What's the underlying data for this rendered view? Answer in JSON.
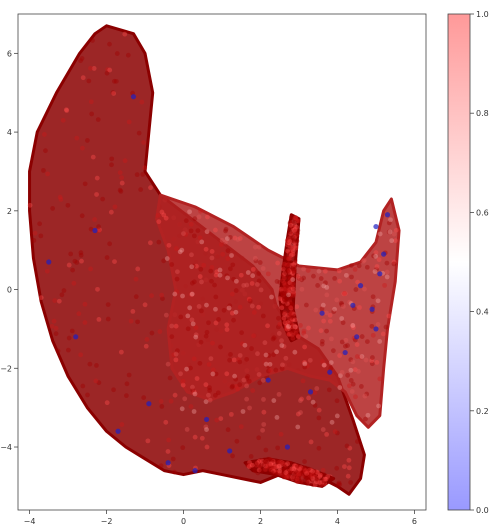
{
  "chart_data": {
    "type": "scatter",
    "xlim": [
      -4.3,
      6.3
    ],
    "ylim": [
      -5.6,
      7.0
    ],
    "x_ticks": [
      -4,
      -2,
      0,
      2,
      4,
      6
    ],
    "y_ticks": [
      -4,
      -2,
      0,
      2,
      4,
      6
    ],
    "grid": false,
    "point_alpha": 0.4,
    "colorbar": {
      "cmap": "bwr",
      "range": [
        0.0,
        1.0
      ],
      "ticks": [
        0.0,
        0.2,
        0.4,
        0.6,
        0.8,
        1.0
      ],
      "colors": {
        "low": "#0000ff",
        "mid": "#ffffff",
        "high": "#ff0000"
      }
    },
    "regions": [
      {
        "name": "main-crescent",
        "value": 1.0,
        "color": "#8b0000",
        "outline": [
          [
            -2.0,
            6.7
          ],
          [
            -1.3,
            6.5
          ],
          [
            -1.0,
            6.0
          ],
          [
            -0.8,
            5.0
          ],
          [
            -0.9,
            4.0
          ],
          [
            -1.0,
            3.0
          ],
          [
            -0.6,
            2.4
          ],
          [
            0.2,
            1.8
          ],
          [
            1.0,
            1.2
          ],
          [
            1.8,
            0.6
          ],
          [
            2.3,
            0.0
          ],
          [
            2.4,
            -0.4
          ],
          [
            2.6,
            -0.7
          ],
          [
            3.0,
            -1.2
          ],
          [
            3.5,
            -1.5
          ],
          [
            4.0,
            -2.2
          ],
          [
            4.4,
            -3.3
          ],
          [
            4.7,
            -4.2
          ],
          [
            4.6,
            -4.8
          ],
          [
            4.3,
            -5.2
          ],
          [
            4.0,
            -5.0
          ],
          [
            3.6,
            -4.8
          ],
          [
            3.0,
            -4.6
          ],
          [
            2.5,
            -4.7
          ],
          [
            2.0,
            -4.9
          ],
          [
            1.5,
            -4.8
          ],
          [
            1.0,
            -4.7
          ],
          [
            0.5,
            -4.6
          ],
          [
            0.0,
            -4.7
          ],
          [
            -0.5,
            -4.6
          ],
          [
            -1.0,
            -4.3
          ],
          [
            -1.5,
            -4.0
          ],
          [
            -2.0,
            -3.6
          ],
          [
            -2.5,
            -3.0
          ],
          [
            -3.0,
            -2.2
          ],
          [
            -3.4,
            -1.3
          ],
          [
            -3.7,
            -0.3
          ],
          [
            -3.9,
            0.8
          ],
          [
            -4.0,
            2.0
          ],
          [
            -4.0,
            3.0
          ],
          [
            -3.8,
            4.0
          ],
          [
            -3.3,
            5.0
          ],
          [
            -2.7,
            6.0
          ],
          [
            -2.3,
            6.5
          ]
        ]
      },
      {
        "name": "upper-right-band",
        "value": 0.9,
        "color": "#b22222",
        "outline": [
          [
            -0.6,
            2.4
          ],
          [
            0.3,
            2.1
          ],
          [
            1.3,
            1.6
          ],
          [
            2.2,
            1.0
          ],
          [
            3.0,
            0.6
          ],
          [
            4.0,
            0.5
          ],
          [
            4.6,
            0.7
          ],
          [
            5.0,
            1.2
          ],
          [
            5.2,
            2.0
          ],
          [
            5.4,
            2.3
          ],
          [
            5.6,
            1.5
          ],
          [
            5.5,
            0.2
          ],
          [
            5.3,
            -1.0
          ],
          [
            5.2,
            -2.0
          ],
          [
            5.1,
            -3.2
          ],
          [
            4.8,
            -3.5
          ],
          [
            4.5,
            -3.2
          ],
          [
            4.2,
            -2.6
          ],
          [
            3.8,
            -2.3
          ],
          [
            3.3,
            -2.2
          ],
          [
            2.7,
            -2.0
          ],
          [
            2.0,
            -2.2
          ],
          [
            1.3,
            -2.6
          ],
          [
            0.7,
            -2.8
          ],
          [
            0.1,
            -2.6
          ],
          [
            -0.3,
            -2.0
          ],
          [
            -0.4,
            -1.0
          ],
          [
            -0.2,
            0.0
          ],
          [
            -0.4,
            1.0
          ],
          [
            -0.7,
            1.8
          ]
        ]
      },
      {
        "name": "central-spike",
        "value": 1.0,
        "color": "#8b0000",
        "outline": [
          [
            2.8,
            1.9
          ],
          [
            3.0,
            1.8
          ],
          [
            2.9,
            0.6
          ],
          [
            2.85,
            -0.5
          ],
          [
            3.0,
            -1.2
          ],
          [
            2.8,
            -1.3
          ],
          [
            2.6,
            -0.9
          ],
          [
            2.5,
            -0.2
          ],
          [
            2.6,
            0.6
          ],
          [
            2.7,
            1.3
          ]
        ]
      },
      {
        "name": "bottom-tail",
        "value": 1.0,
        "color": "#8b0000",
        "outline": [
          [
            1.6,
            -4.4
          ],
          [
            2.2,
            -4.3
          ],
          [
            2.8,
            -4.4
          ],
          [
            3.4,
            -4.6
          ],
          [
            3.9,
            -4.8
          ],
          [
            3.6,
            -5.0
          ],
          [
            3.0,
            -4.9
          ],
          [
            2.4,
            -4.7
          ],
          [
            1.8,
            -4.6
          ]
        ]
      }
    ],
    "blue_points": [
      [
        -1.3,
        4.9
      ],
      [
        -2.3,
        1.5
      ],
      [
        -2.8,
        -1.2
      ],
      [
        -0.9,
        -2.9
      ],
      [
        0.6,
        -3.3
      ],
      [
        2.2,
        -2.3
      ],
      [
        3.3,
        -2.6
      ],
      [
        3.8,
        -2.1
      ],
      [
        4.2,
        -1.6
      ],
      [
        4.5,
        -1.2
      ],
      [
        4.9,
        -0.5
      ],
      [
        5.0,
        -1.0
      ],
      [
        5.1,
        0.4
      ],
      [
        5.2,
        0.9
      ],
      [
        5.0,
        1.6
      ],
      [
        5.3,
        1.9
      ],
      [
        4.6,
        0.1
      ],
      [
        4.4,
        -0.4
      ],
      [
        3.6,
        -0.6
      ],
      [
        0.3,
        -4.6
      ],
      [
        -0.4,
        -4.4
      ],
      [
        1.2,
        -4.1
      ],
      [
        2.7,
        -4.0
      ],
      [
        -3.5,
        0.7
      ],
      [
        -1.7,
        -3.6
      ]
    ]
  }
}
